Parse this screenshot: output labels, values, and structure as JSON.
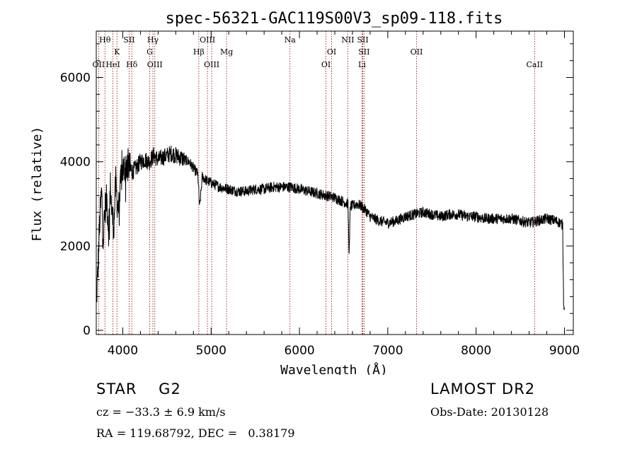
{
  "chart_data": {
    "type": "line",
    "title": "spec-56321-GAC119S00V3_sp09-118.fits",
    "xlabel": "Wavelength (Å)",
    "ylabel": "Flux (relative)",
    "xlim": [
      3700,
      9100
    ],
    "ylim": [
      -100,
      7100
    ],
    "x_ticks": [
      4000,
      5000,
      6000,
      7000,
      8000,
      9000
    ],
    "y_ticks": [
      0,
      2000,
      4000,
      6000
    ],
    "grid": false,
    "spectrum_anchors": {
      "x": [
        3700,
        3720,
        3740,
        3760,
        3780,
        3800,
        3820,
        3840,
        3860,
        3880,
        3900,
        3920,
        3940,
        3960,
        3980,
        4000,
        4050,
        4100,
        4150,
        4200,
        4250,
        4300,
        4350,
        4400,
        4450,
        4500,
        4550,
        4600,
        4650,
        4700,
        4750,
        4800,
        4850,
        4870,
        4900,
        4950,
        5000,
        5100,
        5200,
        5300,
        5400,
        5500,
        5600,
        5700,
        5800,
        5900,
        6000,
        6100,
        6200,
        6300,
        6400,
        6500,
        6550,
        6563,
        6575,
        6600,
        6650,
        6700,
        6720,
        6750,
        6800,
        6900,
        7000,
        7100,
        7200,
        7300,
        7400,
        7500,
        7600,
        7700,
        7800,
        7900,
        8000,
        8100,
        8200,
        8300,
        8400,
        8500,
        8600,
        8700,
        8800,
        8900,
        8950,
        8980,
        8990,
        9000
      ],
      "y": [
        600,
        1500,
        2600,
        3300,
        2200,
        2900,
        3100,
        2400,
        3400,
        2700,
        2500,
        3500,
        3000,
        2900,
        3600,
        3800,
        3950,
        3750,
        3850,
        4000,
        4050,
        4000,
        4150,
        4050,
        4100,
        4150,
        4200,
        4150,
        4100,
        4050,
        4000,
        3850,
        3700,
        2900,
        3650,
        3550,
        3500,
        3400,
        3350,
        3300,
        3300,
        3350,
        3350,
        3400,
        3400,
        3400,
        3350,
        3300,
        3250,
        3200,
        3150,
        3050,
        3000,
        1700,
        2950,
        2950,
        3000,
        2950,
        2900,
        2850,
        2700,
        2600,
        2550,
        2600,
        2700,
        2750,
        2800,
        2750,
        2700,
        2750,
        2750,
        2700,
        2700,
        2650,
        2650,
        2650,
        2650,
        2600,
        2550,
        2600,
        2650,
        2600,
        2550,
        2500,
        700,
        500
      ]
    },
    "spectrum_noise": 130,
    "lines": [
      {
        "label": "Hθ",
        "x": 3798,
        "row": 1
      },
      {
        "label": "OII",
        "x": 3727,
        "row": 3
      },
      {
        "label": "K",
        "x": 3934,
        "row": 2
      },
      {
        "label": "HeI",
        "x": 3889,
        "row": 3
      },
      {
        "label": "SII",
        "x": 4072,
        "row": 1
      },
      {
        "label": "Hδ",
        "x": 4102,
        "row": 3
      },
      {
        "label": "Hγ",
        "x": 4341,
        "row": 1
      },
      {
        "label": "G",
        "x": 4305,
        "row": 2
      },
      {
        "label": "OIII",
        "x": 4363,
        "row": 3
      },
      {
        "label": "OIII",
        "x": 4959,
        "row": 1
      },
      {
        "label": "Hβ",
        "x": 4861,
        "row": 2
      },
      {
        "label": "OIII",
        "x": 5007,
        "row": 3
      },
      {
        "label": "Mg",
        "x": 5175,
        "row": 2
      },
      {
        "label": "Na",
        "x": 5893,
        "row": 1
      },
      {
        "label": "OI",
        "x": 6364,
        "row": 2
      },
      {
        "label": "OI",
        "x": 6300,
        "row": 3
      },
      {
        "label": "NII",
        "x": 6548,
        "row": 1
      },
      {
        "label": "SII",
        "x": 6717,
        "row": 1
      },
      {
        "label": "SII",
        "x": 6731,
        "row": 2
      },
      {
        "label": "Li",
        "x": 6708,
        "row": 3
      },
      {
        "label": "OII",
        "x": 7325,
        "row": 2
      },
      {
        "label": "CaII",
        "x": 8662,
        "row": 3
      }
    ]
  },
  "info": {
    "class_line": "STAR    G2",
    "cz_line": "cz = −33.3 ± 6.9 km/s",
    "radec_line": "RA = 119.68792, DEC =   0.38179",
    "survey": "LAMOST DR2",
    "obs_date": "Obs-Date: 20130128"
  }
}
